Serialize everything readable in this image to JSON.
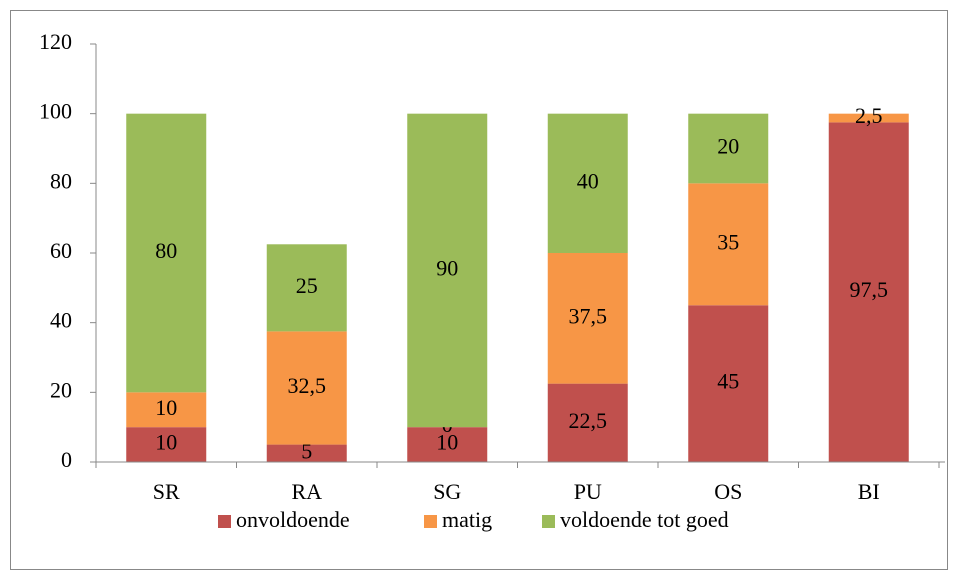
{
  "chart_data": {
    "type": "bar",
    "stacked": true,
    "categories": [
      "SR",
      "RA",
      "SG",
      "PU",
      "OS",
      "BI"
    ],
    "series": [
      {
        "name": "onvoldoende",
        "color": "#c0504d",
        "values": [
          10,
          5,
          10,
          22.5,
          45,
          97.5
        ],
        "value_labels": [
          "10",
          "5",
          "10",
          "22,5",
          "45",
          "97,5"
        ]
      },
      {
        "name": "matig",
        "color": "#f79646",
        "values": [
          10,
          32.5,
          0,
          37.5,
          35,
          2.5
        ],
        "value_labels": [
          "10",
          "32,5",
          "0",
          "37,5",
          "35",
          "2,5"
        ]
      },
      {
        "name": "voldoende tot goed",
        "color": "#9bbb59",
        "values": [
          80,
          25,
          90,
          40,
          20,
          null
        ],
        "value_labels": [
          "80",
          "25",
          "90",
          "40",
          "20",
          null
        ]
      }
    ],
    "ylim": [
      0,
      120
    ],
    "yticks": [
      0,
      20,
      40,
      60,
      80,
      100,
      120
    ],
    "grid": false,
    "legend": "bottom"
  }
}
